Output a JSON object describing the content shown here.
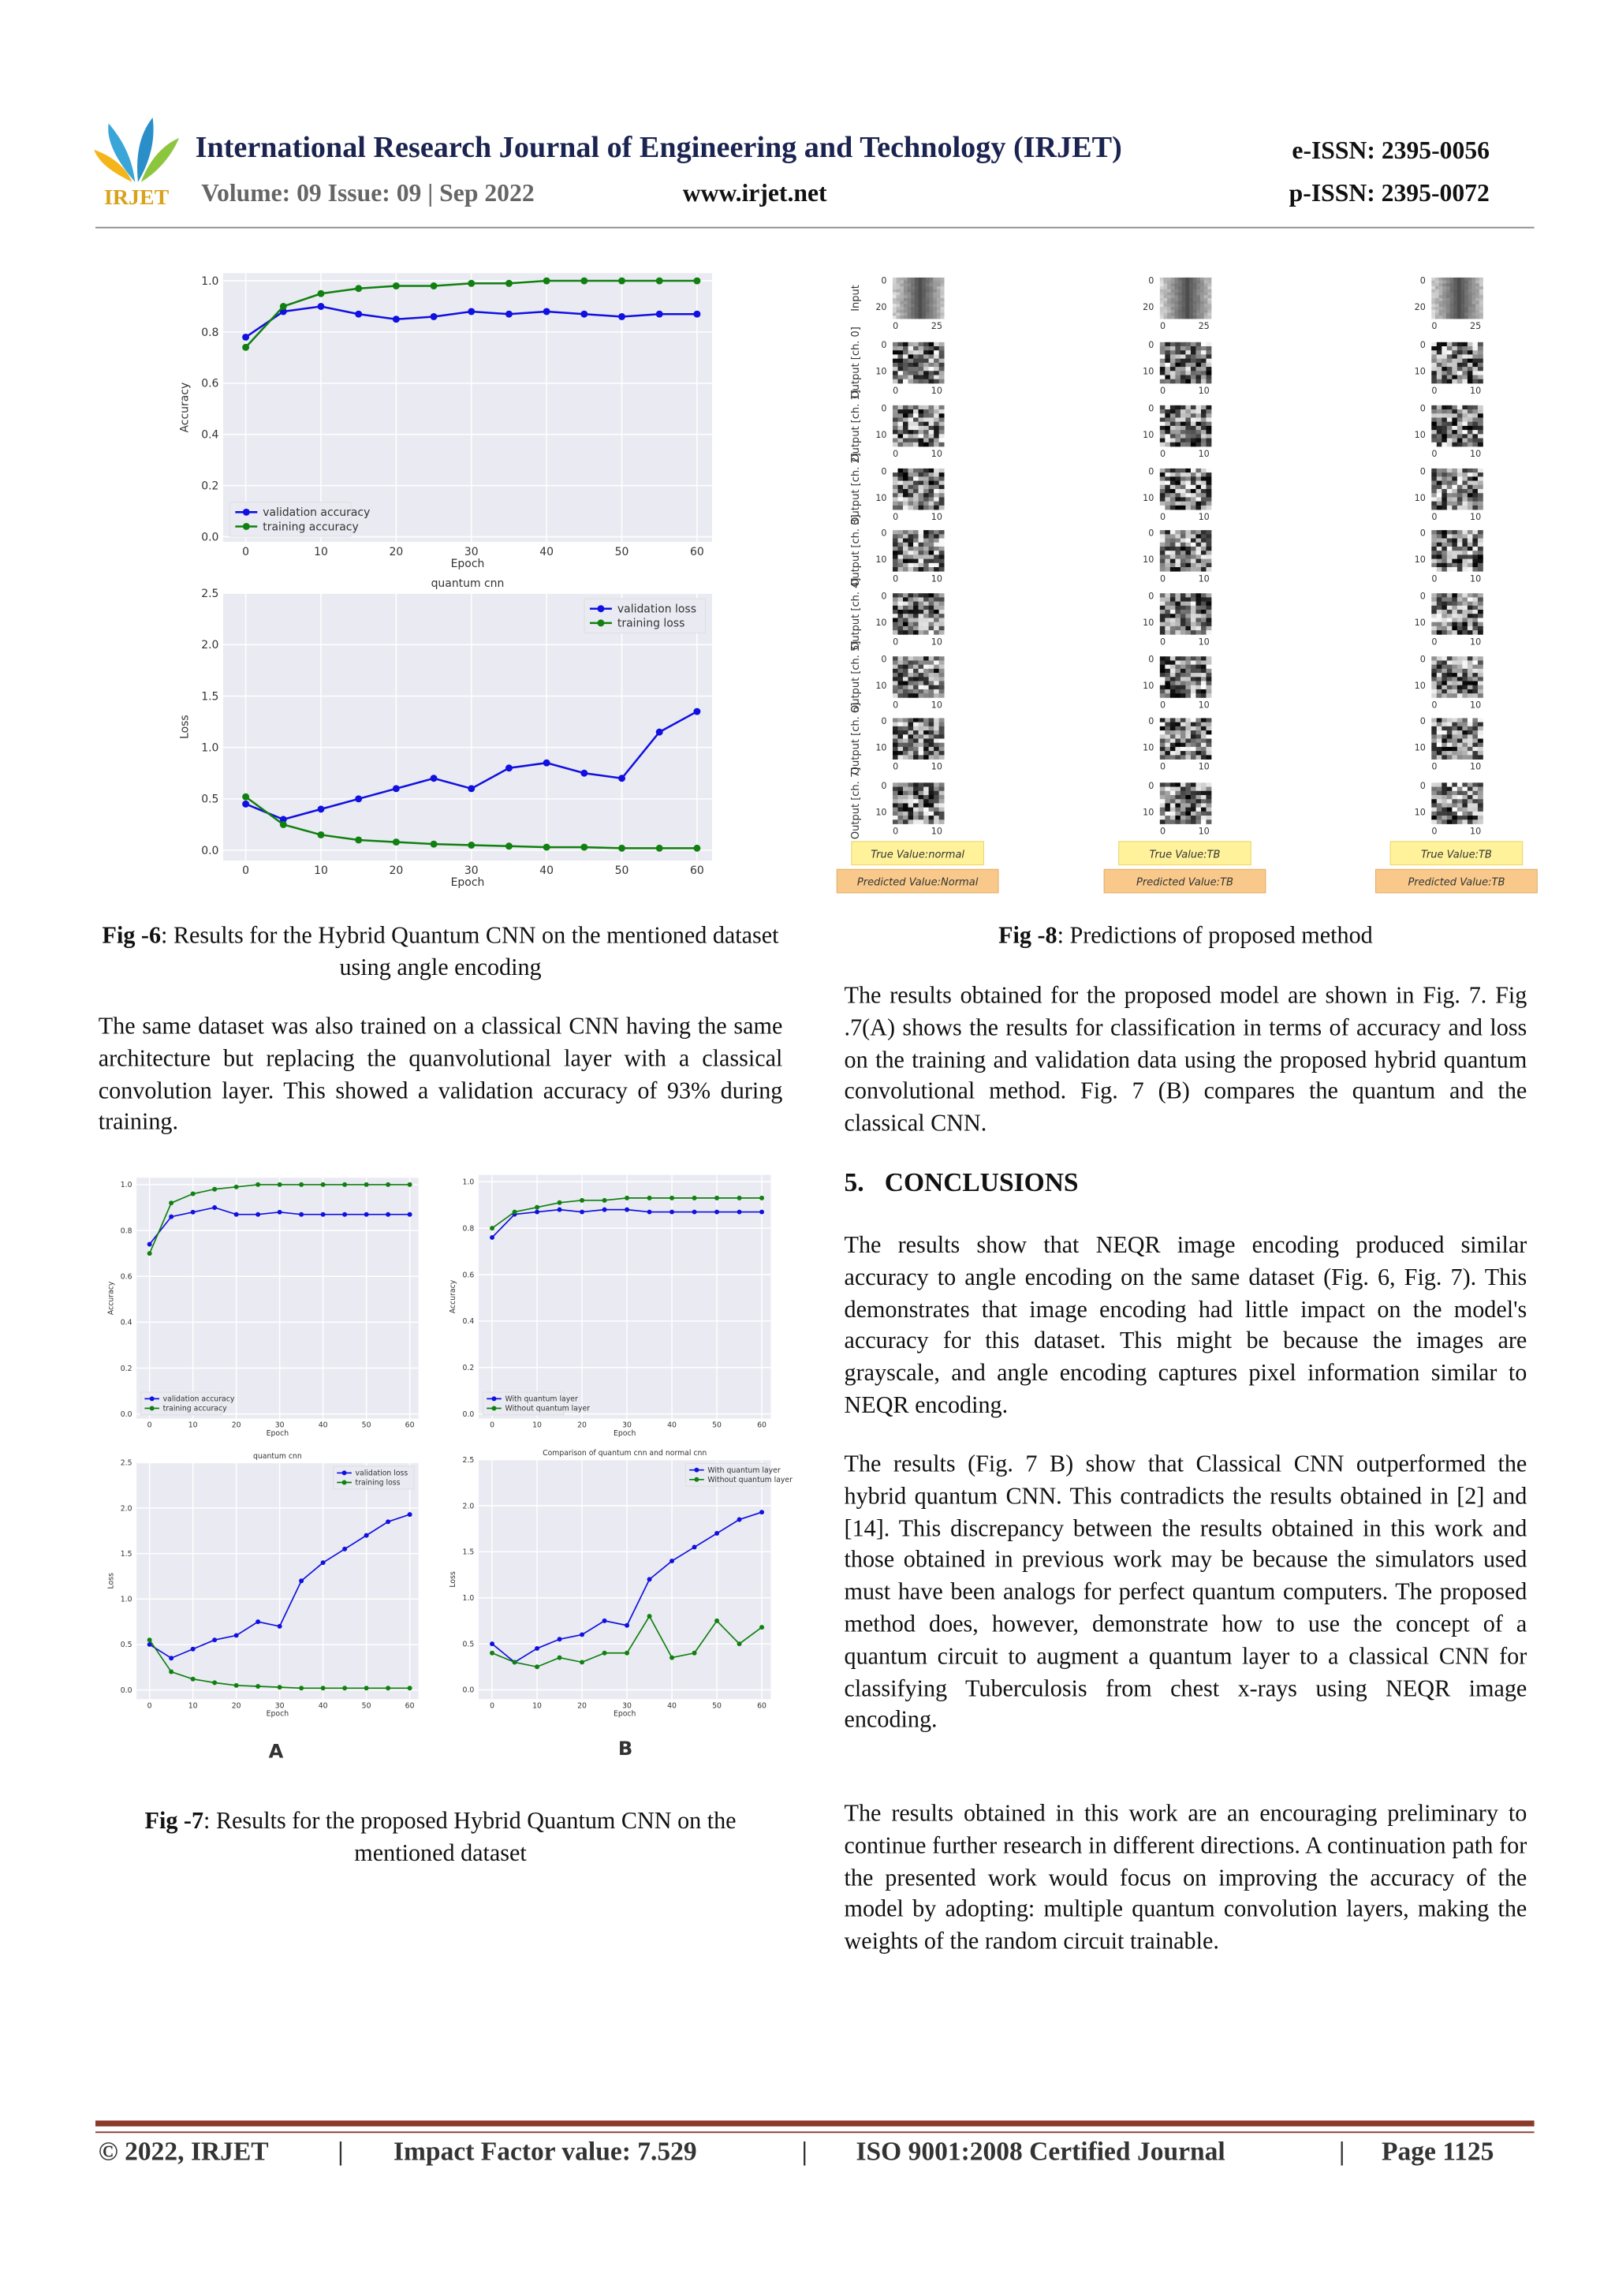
{
  "header": {
    "logo": "IRJET",
    "journal": "International Research Journal of Engineering and Technology (IRJET)",
    "eissn": "e-ISSN: 2395-0056",
    "volume": "Volume: 09 Issue: 09 | Sep 2022",
    "website": "www.irjet.net",
    "pissn": "p-ISSN: 2395-0072"
  },
  "figures": [
    {
      "label": "Fig -6",
      "caption": ": Results for the Hybrid Quantum CNN on the mentioned dataset using angle encoding",
      "panels": [
        {
          "ylabel": "Accuracy",
          "xlabel": "Epoch",
          "xlim": [
            -3,
            62
          ],
          "ylim": [
            -0.02,
            1.03
          ],
          "xticks": [
            0,
            10,
            20,
            30,
            40,
            50,
            60
          ],
          "yticks": [
            {
              "value": 0,
              "label": "0.0"
            },
            0.2,
            0.4,
            0.6,
            0.8,
            {
              "value": 1,
              "label": "1.0"
            }
          ],
          "legend": "lower left",
          "x": [
            0,
            5,
            10,
            15,
            20,
            25,
            30,
            35,
            40,
            45,
            50,
            55,
            60
          ],
          "series": [
            {
              "name": "validation accuracy",
              "color": "#1010e0",
              "values": [
                0.78,
                0.88,
                0.9,
                0.87,
                0.85,
                0.86,
                0.88,
                0.87,
                0.88,
                0.87,
                0.86,
                0.87,
                0.87
              ]
            },
            {
              "name": "training accuracy",
              "color": "#108010",
              "values": [
                0.74,
                0.9,
                0.95,
                0.97,
                0.98,
                0.98,
                0.99,
                0.99,
                1.0,
                1.0,
                1.0,
                1.0,
                1.0
              ]
            }
          ]
        },
        {
          "title": "quantum cnn",
          "ylabel": "Loss",
          "xlabel": "Epoch",
          "xlim": [
            -3,
            62
          ],
          "ylim": [
            -0.1,
            2.5
          ],
          "xticks": [
            0,
            10,
            20,
            30,
            40,
            50,
            60
          ],
          "yticks": [
            {
              "value": 0,
              "label": "0.0"
            },
            0.5,
            {
              "value": 1,
              "label": "1.0"
            },
            1.5,
            {
              "value": 2,
              "label": "2.0"
            },
            2.5
          ],
          "legend": "upper right",
          "x": [
            0,
            5,
            10,
            15,
            20,
            25,
            30,
            35,
            40,
            45,
            50,
            55,
            60
          ],
          "series": [
            {
              "name": "validation loss",
              "color": "#1010e0",
              "values": [
                0.45,
                0.3,
                0.4,
                0.5,
                0.6,
                0.7,
                0.6,
                0.8,
                0.85,
                0.75,
                0.7,
                1.15,
                1.35
              ]
            },
            {
              "name": "training loss",
              "color": "#108010",
              "values": [
                0.52,
                0.25,
                0.15,
                0.1,
                0.08,
                0.06,
                0.05,
                0.04,
                0.03,
                0.03,
                0.02,
                0.02,
                0.02
              ]
            }
          ]
        }
      ]
    },
    {
      "label": "Fig -7",
      "caption": ": Results for the proposed Hybrid Quantum CNN on the mentioned dataset",
      "sublabels": [
        "A",
        "B"
      ],
      "panels": [
        {
          "ylabel": "Accuracy",
          "xlabel": "Epoch",
          "xlim": [
            -3,
            62
          ],
          "ylim": [
            -0.02,
            1.03
          ],
          "xticks": [
            0,
            10,
            20,
            30,
            40,
            50,
            60
          ],
          "yticks": [
            {
              "value": 0,
              "label": "0.0"
            },
            0.2,
            0.4,
            0.6,
            0.8,
            {
              "value": 1,
              "label": "1.0"
            }
          ],
          "legend": "lower left",
          "x": [
            0,
            5,
            10,
            15,
            20,
            25,
            30,
            35,
            40,
            45,
            50,
            55,
            60
          ],
          "series": [
            {
              "name": "validation accuracy",
              "color": "#1010e0",
              "values": [
                0.74,
                0.86,
                0.88,
                0.9,
                0.87,
                0.87,
                0.88,
                0.87,
                0.87,
                0.87,
                0.87,
                0.87,
                0.87
              ]
            },
            {
              "name": "training accuracy",
              "color": "#108010",
              "values": [
                0.7,
                0.92,
                0.96,
                0.98,
                0.99,
                1,
                1,
                1,
                1,
                1,
                1,
                1,
                1
              ]
            }
          ]
        },
        {
          "title": "quantum cnn",
          "ylabel": "Loss",
          "xlabel": "Epoch",
          "xlim": [
            -3,
            62
          ],
          "ylim": [
            -0.1,
            2.5
          ],
          "xticks": [
            0,
            10,
            20,
            30,
            40,
            50,
            60
          ],
          "yticks": [
            {
              "value": 0,
              "label": "0.0"
            },
            0.5,
            {
              "value": 1,
              "label": "1.0"
            },
            1.5,
            {
              "value": 2,
              "label": "2.0"
            },
            2.5
          ],
          "legend": "upper right",
          "x": [
            0,
            5,
            10,
            15,
            20,
            25,
            30,
            35,
            40,
            45,
            50,
            55,
            60
          ],
          "series": [
            {
              "name": "validation loss",
              "color": "#1010e0",
              "values": [
                0.5,
                0.35,
                0.45,
                0.55,
                0.6,
                0.75,
                0.7,
                1.2,
                1.4,
                1.55,
                1.7,
                1.85,
                1.93
              ]
            },
            {
              "name": "training loss",
              "color": "#108010",
              "values": [
                0.55,
                0.2,
                0.12,
                0.08,
                0.05,
                0.04,
                0.03,
                0.02,
                0.02,
                0.02,
                0.02,
                0.02,
                0.02
              ]
            }
          ]
        },
        {
          "ylabel": "Accuracy",
          "xlabel": "Epoch",
          "xlim": [
            -3,
            62
          ],
          "ylim": [
            -0.02,
            1.03
          ],
          "xticks": [
            0,
            10,
            20,
            30,
            40,
            50,
            60
          ],
          "yticks": [
            {
              "value": 0,
              "label": "0.0"
            },
            0.2,
            0.4,
            0.6,
            0.8,
            {
              "value": 1,
              "label": "1.0"
            }
          ],
          "legend": "lower left",
          "x": [
            0,
            5,
            10,
            15,
            20,
            25,
            30,
            35,
            40,
            45,
            50,
            55,
            60
          ],
          "series": [
            {
              "name": "With quantum layer",
              "color": "#1010e0",
              "values": [
                0.76,
                0.86,
                0.87,
                0.88,
                0.87,
                0.88,
                0.88,
                0.87,
                0.87,
                0.87,
                0.87,
                0.87,
                0.87
              ]
            },
            {
              "name": "Without quantum layer",
              "color": "#108010",
              "values": [
                0.8,
                0.87,
                0.89,
                0.91,
                0.92,
                0.92,
                0.93,
                0.93,
                0.93,
                0.93,
                0.93,
                0.93,
                0.93
              ]
            }
          ]
        },
        {
          "title": "Comparison of quantum cnn and normal cnn",
          "ylabel": "Loss",
          "xlabel": "Epoch",
          "xlim": [
            -3,
            62
          ],
          "ylim": [
            -0.1,
            2.5
          ],
          "xticks": [
            0,
            10,
            20,
            30,
            40,
            50,
            60
          ],
          "yticks": [
            {
              "value": 0,
              "label": "0.0"
            },
            0.5,
            {
              "value": 1,
              "label": "1.0"
            },
            1.5,
            {
              "value": 2,
              "label": "2.0"
            },
            2.5
          ],
          "legend": "upper right",
          "x": [
            0,
            5,
            10,
            15,
            20,
            25,
            30,
            35,
            40,
            45,
            50,
            55,
            60
          ],
          "series": [
            {
              "name": "With quantum layer",
              "color": "#1010e0",
              "values": [
                0.5,
                0.3,
                0.45,
                0.55,
                0.6,
                0.75,
                0.7,
                1.2,
                1.4,
                1.55,
                1.7,
                1.85,
                1.93
              ]
            },
            {
              "name": "Without quantum layer",
              "color": "#108010",
              "values": [
                0.4,
                0.3,
                0.25,
                0.35,
                0.3,
                0.4,
                0.4,
                0.8,
                0.35,
                0.4,
                0.75,
                0.5,
                0.68
              ]
            }
          ]
        }
      ]
    },
    {
      "label": "Fig -8",
      "caption": ": Predictions of proposed method",
      "rows": [
        "Input",
        "Output [ch. 0]",
        "Output [ch. 1]",
        "Output [ch. 2]",
        "Output [ch. 3]",
        "Output [ch. 4]",
        "Output [ch. 5]",
        "Output [ch. 6]",
        "Output [ch. 7]"
      ],
      "input_ticks": {
        "y": [
          0,
          20
        ],
        "x": [
          0,
          25
        ]
      },
      "output_ticks": {
        "y": [
          0,
          10
        ],
        "x": [
          0,
          10
        ]
      },
      "columns": [
        {
          "true": "True Value:normal",
          "predicted": "Predicted Value:Normal"
        },
        {
          "true": "True Value:TB",
          "predicted": "Predicted Value:TB"
        },
        {
          "true": "True Value:TB",
          "predicted": "Predicted Value:TB"
        }
      ]
    }
  ],
  "text": {
    "left1": "The same dataset was also trained on a classical CNN having the same architecture but replacing the quanvolutional layer with a classical convolution layer. This showed a validation accuracy of 93% during training.",
    "right1": "The results obtained for the proposed model are shown in Fig. 7. Fig .7(A) shows the results for classification in terms of accuracy and loss on the training and validation data using the proposed hybrid quantum convolutional method. Fig. 7 (B) compares the quantum and the classical CNN.",
    "heading_number": "5.",
    "heading": "CONCLUSIONS",
    "right2": "The results show that NEQR image encoding produced similar accuracy to angle encoding on the same dataset (Fig. 6, Fig. 7). This demonstrates that image encoding had little impact on the model's accuracy for this dataset. This might be because the images are grayscale, and angle encoding captures pixel information similar to NEQR encoding.",
    "right3": "The results (Fig. 7 B) show that Classical CNN outperformed the hybrid quantum CNN. This contradicts the results obtained in [2] and [14]. This discrepancy between the results obtained in this work and those obtained in previous work may be because the simulators used must have been analogs for perfect quantum computers. The proposed method does, however, demonstrate how to use the concept of a quantum circuit to augment a quantum layer to a classical CNN for classifying Tuberculosis from chest x-rays using NEQR image encoding.",
    "right4": "The results obtained in this work are an encouraging preliminary to continue further research in different directions. A continuation path for the presented work would focus on improving the accuracy of the model by adopting: multiple quantum convolution layers, making the weights of the random circuit trainable."
  },
  "footer": {
    "copyright": "© 2022, IRJET",
    "separator": "|",
    "impact": "Impact Factor value: 7.529",
    "iso": "ISO 9001:2008 Certified Journal",
    "page": "Page 1125"
  }
}
